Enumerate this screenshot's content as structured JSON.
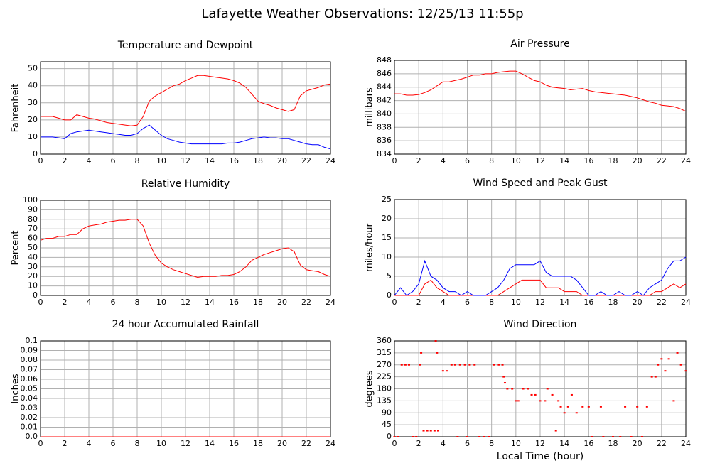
{
  "title": "Lafayette Weather Observations: 12/25/13 11:55p",
  "chart_data": [
    {
      "type": "line",
      "title": "Temperature and Dewpoint",
      "ylabel": "Fahrenheit",
      "x": [
        0,
        0.5,
        1,
        1.5,
        2,
        2.5,
        3,
        3.5,
        4,
        4.5,
        5,
        5.5,
        6,
        6.5,
        7,
        7.5,
        8,
        8.5,
        9,
        9.5,
        10,
        10.5,
        11,
        11.5,
        12,
        12.5,
        13,
        13.5,
        14,
        14.5,
        15,
        15.5,
        16,
        16.5,
        17,
        17.5,
        18,
        18.5,
        19,
        19.5,
        20,
        20.5,
        21,
        21.5,
        22,
        22.5,
        23,
        23.5,
        24
      ],
      "series": [
        {
          "color": "#ff0000",
          "values": [
            22,
            22,
            22,
            21,
            20,
            20,
            23,
            22,
            21,
            20.5,
            19.5,
            18.5,
            18,
            17.5,
            17,
            16.5,
            17,
            22,
            31,
            34,
            36,
            38,
            40,
            41,
            43,
            44.5,
            46,
            46,
            45.5,
            45,
            44.5,
            44,
            43,
            41.5,
            39,
            35,
            31,
            29.5,
            28.5,
            27,
            26,
            25,
            26,
            34,
            37,
            38,
            39,
            40.5,
            41
          ]
        },
        {
          "color": "#0000ff",
          "values": [
            10,
            10,
            10,
            9.5,
            9,
            12,
            13,
            13.5,
            14,
            13.5,
            13,
            12.5,
            12,
            11.5,
            11,
            11,
            12,
            15,
            17,
            14,
            11,
            9,
            8,
            7,
            6.5,
            6,
            6,
            6,
            6,
            6,
            6,
            6.5,
            6.5,
            7,
            8,
            9,
            9.5,
            10,
            9.5,
            9.5,
            9,
            9,
            8,
            7,
            6,
            5.5,
            5.5,
            4,
            3
          ]
        }
      ],
      "xlim": [
        0,
        24
      ],
      "xticks": [
        0,
        2,
        4,
        6,
        8,
        10,
        12,
        14,
        16,
        18,
        20,
        22,
        24
      ],
      "ylim": [
        0,
        54
      ],
      "yticks": [
        0,
        10,
        20,
        30,
        40,
        50
      ],
      "grid": true
    },
    {
      "type": "line",
      "title": "Air Pressure",
      "ylabel": "millibars",
      "x": [
        0,
        0.5,
        1,
        1.5,
        2,
        2.5,
        3,
        3.5,
        4,
        4.5,
        5,
        5.5,
        6,
        6.5,
        7,
        7.5,
        8,
        8.5,
        9,
        9.5,
        10,
        10.5,
        11,
        11.5,
        12,
        12.5,
        13,
        13.5,
        14,
        14.5,
        15,
        15.5,
        16,
        16.5,
        17,
        17.5,
        18,
        18.5,
        19,
        19.5,
        20,
        20.5,
        21,
        21.5,
        22,
        22.5,
        23,
        23.5,
        24
      ],
      "series": [
        {
          "color": "#ff0000",
          "values": [
            843,
            843,
            842.8,
            842.8,
            842.9,
            843.2,
            843.6,
            844.2,
            844.8,
            844.8,
            845,
            845.2,
            845.5,
            845.8,
            845.8,
            846,
            846,
            846.2,
            846.3,
            846.4,
            846.4,
            846,
            845.5,
            845,
            844.8,
            844.3,
            844,
            843.9,
            843.8,
            843.6,
            843.7,
            843.8,
            843.5,
            843.3,
            843.2,
            843.1,
            843,
            842.9,
            842.8,
            842.6,
            842.4,
            842.1,
            841.8,
            841.6,
            841.3,
            841.2,
            841.1,
            840.8,
            840.4
          ]
        }
      ],
      "xlim": [
        0,
        24
      ],
      "xticks": [
        0,
        2,
        4,
        6,
        8,
        10,
        12,
        14,
        16,
        18,
        20,
        22,
        24
      ],
      "ylim": [
        834,
        848
      ],
      "yticks": [
        834,
        836,
        838,
        840,
        842,
        844,
        846,
        848
      ],
      "grid": true
    },
    {
      "type": "line",
      "title": "Relative Humidity",
      "ylabel": "Percent",
      "x": [
        0,
        0.5,
        1,
        1.5,
        2,
        2.5,
        3,
        3.5,
        4,
        4.5,
        5,
        5.5,
        6,
        6.5,
        7,
        7.5,
        8,
        8.5,
        9,
        9.5,
        10,
        10.5,
        11,
        11.5,
        12,
        12.5,
        13,
        13.5,
        14,
        14.5,
        15,
        15.5,
        16,
        16.5,
        17,
        17.5,
        18,
        18.5,
        19,
        19.5,
        20,
        20.5,
        21,
        21.5,
        22,
        22.5,
        23,
        23.5,
        24
      ],
      "series": [
        {
          "color": "#ff0000",
          "values": [
            58,
            60,
            60,
            62,
            62,
            64,
            64,
            70,
            73,
            74,
            75,
            77,
            78,
            79,
            79,
            80,
            80,
            73,
            55,
            42,
            34,
            30,
            27,
            25,
            23,
            21,
            19,
            20,
            20,
            20,
            21,
            21,
            22,
            25,
            30,
            37,
            40,
            43,
            45,
            47,
            49,
            50,
            46,
            32,
            27,
            26,
            25,
            22,
            20
          ]
        }
      ],
      "xlim": [
        0,
        24
      ],
      "xticks": [
        0,
        2,
        4,
        6,
        8,
        10,
        12,
        14,
        16,
        18,
        20,
        22,
        24
      ],
      "ylim": [
        0,
        100
      ],
      "yticks": [
        0,
        10,
        20,
        30,
        40,
        50,
        60,
        70,
        80,
        90,
        100
      ],
      "grid": true
    },
    {
      "type": "line",
      "title": "Wind Speed and Peak Gust",
      "ylabel": "miles/hour",
      "x": [
        0,
        0.5,
        1,
        1.5,
        2,
        2.5,
        3,
        3.5,
        4,
        4.5,
        5,
        5.5,
        6,
        6.5,
        7,
        7.5,
        8,
        8.5,
        9,
        9.5,
        10,
        10.5,
        11,
        11.5,
        12,
        12.5,
        13,
        13.5,
        14,
        14.5,
        15,
        15.5,
        16,
        16.5,
        17,
        17.5,
        18,
        18.5,
        19,
        19.5,
        20,
        20.5,
        21,
        21.5,
        22,
        22.5,
        23,
        23.5,
        24
      ],
      "series": [
        {
          "color": "#ff0000",
          "values": [
            0,
            0,
            0,
            0,
            0,
            3,
            4,
            2,
            1,
            0,
            0,
            0,
            0,
            0,
            0,
            0,
            0,
            0,
            1,
            2,
            3,
            4,
            4,
            4,
            4,
            2,
            2,
            2,
            1,
            1,
            1,
            0,
            0,
            0,
            0,
            0,
            0,
            0,
            0,
            0,
            0,
            0,
            0,
            1,
            1,
            2,
            3,
            2,
            3
          ]
        },
        {
          "color": "#0000ff",
          "values": [
            0,
            2,
            0,
            1,
            3,
            9,
            5,
            4,
            2,
            1,
            1,
            0,
            1,
            0,
            0,
            0,
            1,
            2,
            4,
            7,
            8,
            8,
            8,
            8,
            9,
            6,
            5,
            5,
            5,
            5,
            4,
            2,
            0,
            0,
            1,
            0,
            0,
            1,
            0,
            0,
            1,
            0,
            2,
            3,
            4,
            7,
            9,
            9,
            10
          ]
        }
      ],
      "xlim": [
        0,
        24
      ],
      "xticks": [
        0,
        2,
        4,
        6,
        8,
        10,
        12,
        14,
        16,
        18,
        20,
        22,
        24
      ],
      "ylim": [
        0,
        25
      ],
      "yticks": [
        0,
        5,
        10,
        15,
        20,
        25
      ],
      "grid": true
    },
    {
      "type": "line",
      "title": "24 hour Accumulated Rainfall",
      "ylabel": "Inches",
      "x": [
        0,
        24
      ],
      "series": [
        {
          "color": "#ff0000",
          "values": [
            0,
            0
          ]
        }
      ],
      "xlim": [
        0,
        24
      ],
      "xticks": [
        0,
        2,
        4,
        6,
        8,
        10,
        12,
        14,
        16,
        18,
        20,
        22,
        24
      ],
      "ylim": [
        0,
        0.1
      ],
      "yticks": [
        {
          "value": 0,
          "label": "0.0"
        },
        0.01,
        0.02,
        0.03,
        0.04,
        0.05,
        0.06,
        0.07,
        0.08,
        0.09,
        0.1
      ],
      "grid": true
    },
    {
      "type": "scatter",
      "title": "Wind Direction",
      "ylabel": "degrees",
      "xlabel": "Local Time (hour)",
      "x": [
        0,
        0.3,
        0.6,
        0.9,
        1.2,
        1.5,
        1.8,
        2.1,
        2.2,
        2.4,
        2.7,
        3,
        3.3,
        3.4,
        3.5,
        3.6,
        4,
        4.3,
        4.7,
        5,
        5.2,
        5.4,
        5.8,
        6,
        6.2,
        6.6,
        7,
        7.4,
        7.8,
        8.2,
        8.6,
        8.9,
        9,
        9.1,
        9.3,
        9.7,
        10,
        10.2,
        10.6,
        11,
        11.3,
        11.6,
        12,
        12.4,
        12.6,
        13,
        13.3,
        13.5,
        13.7,
        14,
        14.3,
        14.6,
        15,
        15.5,
        16,
        16.3,
        17,
        17.2,
        18,
        18.6,
        19,
        19.5,
        20,
        20.4,
        20.8,
        21.2,
        21.5,
        21.7,
        22,
        22.3,
        22.6,
        23,
        23.3,
        23.6,
        24
      ],
      "series": [
        {
          "color": "#ff0000",
          "values": [
            0,
            0,
            270,
            270,
            270,
            0,
            0,
            270,
            315,
            22.5,
            22.5,
            22.5,
            22.5,
            360,
            315,
            22.5,
            247.5,
            247.5,
            270,
            270,
            0,
            270,
            270,
            0,
            270,
            270,
            0,
            0,
            0,
            270,
            270,
            270,
            225,
            202.5,
            180,
            180,
            135,
            135,
            180,
            180,
            157.5,
            157.5,
            135,
            135,
            180,
            157.5,
            22.5,
            135,
            112.5,
            90,
            112.5,
            157.5,
            90,
            112.5,
            112.5,
            0,
            112.5,
            0,
            0,
            0,
            112.5,
            0,
            112.5,
            0,
            112.5,
            225,
            225,
            270,
            292.5,
            247.5,
            292.5,
            135,
            315,
            270,
            247.5
          ]
        }
      ],
      "xlim": [
        0,
        24
      ],
      "xticks": [
        0,
        2,
        4,
        6,
        8,
        10,
        12,
        14,
        16,
        18,
        20,
        22,
        24
      ],
      "ylim": [
        0,
        360
      ],
      "yticks": [
        0,
        45,
        90,
        135,
        180,
        225,
        270,
        315,
        360
      ],
      "grid": true
    }
  ]
}
